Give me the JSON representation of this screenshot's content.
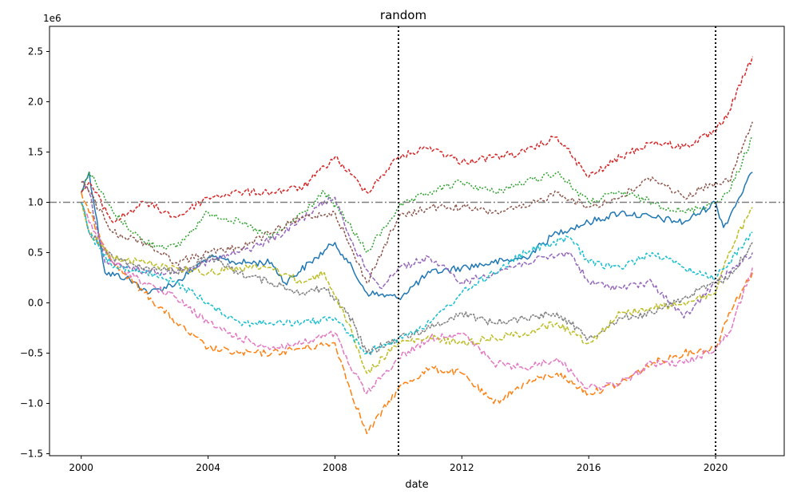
{
  "chart_data": {
    "type": "line",
    "title": "random",
    "xlabel": "date",
    "ylabel": "",
    "y_offset_label": "1e6",
    "xlim": [
      "1999-01-01",
      "2022-03-01"
    ],
    "ylim": [
      -1.52,
      2.75
    ],
    "x_ticks": [
      {
        "date": "2000-01-01",
        "label": "2000"
      },
      {
        "date": "2004-01-01",
        "label": "2004"
      },
      {
        "date": "2008-01-01",
        "label": "2008"
      },
      {
        "date": "2012-01-01",
        "label": "2012"
      },
      {
        "date": "2016-01-01",
        "label": "2016"
      },
      {
        "date": "2020-01-01",
        "label": "2020"
      }
    ],
    "y_ticks": [
      {
        "value": -1.5,
        "label": "−1.5"
      },
      {
        "value": -1.0,
        "label": "−1.0"
      },
      {
        "value": -0.5,
        "label": "−0.5"
      },
      {
        "value": 0.0,
        "label": "0.0"
      },
      {
        "value": 0.5,
        "label": "0.5"
      },
      {
        "value": 1.0,
        "label": "1.0"
      },
      {
        "value": 1.5,
        "label": "1.5"
      },
      {
        "value": 2.0,
        "label": "2.0"
      },
      {
        "value": 2.5,
        "label": "2.5"
      }
    ],
    "reference_lines": {
      "horizontal": {
        "value": 1.0,
        "color": "#7f7f7f",
        "style": "dashdot"
      },
      "vertical": [
        {
          "date": "2010-01-01",
          "color": "#000000",
          "style": "dotted"
        },
        {
          "date": "2020-01-01",
          "color": "#000000",
          "style": "dotted"
        }
      ]
    },
    "grid": false,
    "legend": "none",
    "series": [
      {
        "color": "#1f77b4",
        "dash": "solid",
        "x": [
          "2000-01-01",
          "2000-04-01",
          "2000-10-01",
          "2001-06-01",
          "2002-03-01",
          "2003-01-01",
          "2004-01-01",
          "2005-01-01",
          "2006-01-01",
          "2006-06-01",
          "2007-06-01",
          "2008-01-01",
          "2008-06-01",
          "2009-01-01",
          "2010-01-01",
          "2011-01-01",
          "2012-01-01",
          "2013-01-01",
          "2014-01-01",
          "2015-01-01",
          "2016-01-01",
          "2017-01-01",
          "2018-01-01",
          "2019-01-01",
          "2020-01-01",
          "2020-04-01",
          "2020-07-01",
          "2021-03-01"
        ],
        "y": [
          1.1,
          1.3,
          0.3,
          0.25,
          0.1,
          0.2,
          0.45,
          0.4,
          0.4,
          0.2,
          0.45,
          0.6,
          0.4,
          0.1,
          0.05,
          0.3,
          0.35,
          0.4,
          0.45,
          0.7,
          0.8,
          0.9,
          0.85,
          0.8,
          1.0,
          0.75,
          0.9,
          1.3
        ]
      },
      {
        "color": "#ff7f0e",
        "dash": "8,3",
        "x": [
          "2000-01-01",
          "2000-04-01",
          "2001-01-01",
          "2002-01-01",
          "2003-01-01",
          "2004-01-01",
          "2005-01-01",
          "2006-01-01",
          "2007-01-01",
          "2008-01-01",
          "2008-06-01",
          "2009-01-01",
          "2010-01-01",
          "2011-01-01",
          "2012-01-01",
          "2013-01-01",
          "2014-01-01",
          "2015-01-01",
          "2016-01-01",
          "2017-01-01",
          "2018-01-01",
          "2019-01-01",
          "2020-01-01",
          "2020-06-01",
          "2021-03-01"
        ],
        "y": [
          1.1,
          0.9,
          0.4,
          0.1,
          -0.2,
          -0.45,
          -0.5,
          -0.5,
          -0.45,
          -0.4,
          -0.8,
          -1.3,
          -0.85,
          -0.65,
          -0.7,
          -1.0,
          -0.8,
          -0.7,
          -0.9,
          -0.8,
          -0.6,
          -0.5,
          -0.45,
          -0.1,
          0.3
        ]
      },
      {
        "color": "#2ca02c",
        "dash": "2,2",
        "x": [
          "2000-01-01",
          "2000-04-01",
          "2001-01-01",
          "2002-01-01",
          "2003-01-01",
          "2004-01-01",
          "2005-01-01",
          "2006-01-01",
          "2007-01-01",
          "2007-09-01",
          "2008-06-01",
          "2009-01-01",
          "2010-01-01",
          "2011-01-01",
          "2012-01-01",
          "2013-01-01",
          "2014-01-01",
          "2015-01-01",
          "2016-01-01",
          "2017-01-01",
          "2018-01-01",
          "2019-01-01",
          "2020-01-01",
          "2020-06-01",
          "2021-03-01"
        ],
        "y": [
          1.1,
          1.3,
          0.9,
          0.6,
          0.55,
          0.9,
          0.8,
          0.65,
          0.9,
          1.1,
          0.8,
          0.5,
          0.95,
          1.1,
          1.2,
          1.1,
          1.2,
          1.3,
          1.0,
          1.1,
          1.0,
          0.9,
          1.0,
          1.1,
          1.65
        ]
      },
      {
        "color": "#d62728",
        "dash": "4,2",
        "x": [
          "2000-01-01",
          "2000-04-01",
          "2001-01-01",
          "2002-01-01",
          "2003-01-01",
          "2004-01-01",
          "2005-01-01",
          "2006-01-01",
          "2007-01-01",
          "2008-01-01",
          "2009-01-01",
          "2010-01-01",
          "2011-01-01",
          "2012-01-01",
          "2013-01-01",
          "2014-01-01",
          "2015-01-01",
          "2016-01-01",
          "2017-01-01",
          "2018-01-01",
          "2019-01-01",
          "2020-01-01",
          "2020-06-01",
          "2021-03-01"
        ],
        "y": [
          1.1,
          1.2,
          0.8,
          1.0,
          0.85,
          1.05,
          1.1,
          1.1,
          1.15,
          1.45,
          1.1,
          1.45,
          1.55,
          1.4,
          1.45,
          1.5,
          1.65,
          1.25,
          1.45,
          1.6,
          1.55,
          1.7,
          1.9,
          2.45
        ]
      },
      {
        "color": "#9467bd",
        "dash": "5,2",
        "x": [
          "2000-01-01",
          "2000-04-01",
          "2000-10-01",
          "2001-06-01",
          "2002-06-01",
          "2003-06-01",
          "2004-06-01",
          "2005-06-01",
          "2006-06-01",
          "2007-06-01",
          "2008-01-01",
          "2008-09-01",
          "2009-06-01",
          "2010-01-01",
          "2011-01-01",
          "2012-01-01",
          "2013-01-01",
          "2014-01-01",
          "2015-06-01",
          "2016-01-01",
          "2017-01-01",
          "2018-01-01",
          "2019-01-01",
          "2020-01-01",
          "2020-06-01",
          "2021-03-01"
        ],
        "y": [
          1.2,
          1.1,
          0.4,
          0.35,
          0.3,
          0.35,
          0.45,
          0.55,
          0.7,
          0.95,
          1.05,
          0.5,
          0.15,
          0.35,
          0.45,
          0.2,
          0.3,
          0.4,
          0.5,
          0.2,
          0.15,
          0.2,
          -0.15,
          0.2,
          0.3,
          0.5
        ]
      },
      {
        "color": "#8c564b",
        "dash": "3,2",
        "x": [
          "2000-01-01",
          "2000-04-01",
          "2001-01-01",
          "2002-01-01",
          "2003-01-01",
          "2004-01-01",
          "2005-01-01",
          "2006-01-01",
          "2007-01-01",
          "2008-01-01",
          "2008-06-01",
          "2009-01-01",
          "2010-01-01",
          "2011-01-01",
          "2012-01-01",
          "2013-01-01",
          "2014-01-01",
          "2015-01-01",
          "2016-01-01",
          "2017-01-01",
          "2018-01-01",
          "2019-01-01",
          "2020-01-01",
          "2020-06-01",
          "2021-03-01"
        ],
        "y": [
          1.2,
          1.1,
          0.7,
          0.6,
          0.4,
          0.5,
          0.55,
          0.7,
          0.85,
          0.9,
          0.6,
          0.2,
          0.85,
          0.95,
          0.95,
          0.9,
          0.95,
          1.1,
          0.95,
          1.05,
          1.25,
          1.05,
          1.2,
          1.2,
          1.8
        ]
      },
      {
        "color": "#e377c2",
        "dash": "6,2",
        "x": [
          "2000-01-01",
          "2000-04-01",
          "2001-01-01",
          "2002-01-01",
          "2003-01-01",
          "2004-01-01",
          "2005-01-01",
          "2006-01-01",
          "2007-01-01",
          "2008-01-01",
          "2008-06-01",
          "2009-01-01",
          "2010-01-01",
          "2011-01-01",
          "2012-01-01",
          "2013-01-01",
          "2014-01-01",
          "2015-01-01",
          "2016-01-01",
          "2017-01-01",
          "2018-01-01",
          "2019-01-01",
          "2020-01-01",
          "2020-06-01",
          "2021-03-01"
        ],
        "y": [
          1.0,
          0.8,
          0.4,
          0.2,
          0.05,
          -0.2,
          -0.35,
          -0.45,
          -0.4,
          -0.3,
          -0.6,
          -0.9,
          -0.55,
          -0.35,
          -0.3,
          -0.6,
          -0.65,
          -0.55,
          -0.85,
          -0.8,
          -0.6,
          -0.6,
          -0.45,
          -0.3,
          0.35
        ]
      },
      {
        "color": "#7f7f7f",
        "dash": "3,1",
        "x": [
          "2000-01-01",
          "2000-04-01",
          "2001-01-01",
          "2002-01-01",
          "2003-01-01",
          "2004-01-01",
          "2005-01-01",
          "2006-01-01",
          "2007-01-01",
          "2007-09-01",
          "2008-06-01",
          "2009-01-01",
          "2010-01-01",
          "2011-01-01",
          "2012-01-01",
          "2013-01-01",
          "2014-01-01",
          "2015-01-01",
          "2016-01-01",
          "2017-01-01",
          "2018-01-01",
          "2019-01-01",
          "2020-01-01",
          "2020-06-01",
          "2021-03-01"
        ],
        "y": [
          1.0,
          0.7,
          0.45,
          0.35,
          0.3,
          0.45,
          0.3,
          0.2,
          0.1,
          0.15,
          -0.1,
          -0.5,
          -0.35,
          -0.25,
          -0.1,
          -0.2,
          -0.15,
          -0.1,
          -0.35,
          -0.15,
          -0.1,
          0.05,
          0.2,
          0.25,
          0.6
        ]
      },
      {
        "color": "#bcbd22",
        "dash": "5,2",
        "x": [
          "2000-01-01",
          "2000-04-01",
          "2001-01-01",
          "2002-01-01",
          "2003-01-01",
          "2004-01-01",
          "2005-01-01",
          "2006-01-01",
          "2007-01-01",
          "2007-09-01",
          "2008-06-01",
          "2009-01-01",
          "2010-01-01",
          "2011-01-01",
          "2012-01-01",
          "2013-01-01",
          "2014-01-01",
          "2015-01-01",
          "2016-01-01",
          "2017-01-01",
          "2018-01-01",
          "2019-01-01",
          "2020-01-01",
          "2020-06-01",
          "2021-03-01"
        ],
        "y": [
          1.0,
          0.7,
          0.45,
          0.4,
          0.35,
          0.3,
          0.35,
          0.35,
          0.2,
          0.3,
          -0.2,
          -0.7,
          -0.4,
          -0.35,
          -0.4,
          -0.35,
          -0.3,
          -0.2,
          -0.4,
          -0.1,
          -0.05,
          0.0,
          0.1,
          0.5,
          0.95
        ]
      },
      {
        "color": "#17becf",
        "dash": "4,2",
        "x": [
          "2000-01-01",
          "2000-04-01",
          "2001-01-01",
          "2002-01-01",
          "2003-01-01",
          "2004-01-01",
          "2005-01-01",
          "2006-01-01",
          "2007-01-01",
          "2008-01-01",
          "2008-06-01",
          "2009-01-01",
          "2010-01-01",
          "2011-01-01",
          "2012-01-01",
          "2013-01-01",
          "2014-01-01",
          "2015-06-01",
          "2016-01-01",
          "2017-01-01",
          "2018-01-01",
          "2019-01-01",
          "2020-01-01",
          "2020-06-01",
          "2021-03-01"
        ],
        "y": [
          1.0,
          0.7,
          0.35,
          0.3,
          0.2,
          0.0,
          -0.2,
          -0.2,
          -0.2,
          -0.15,
          -0.3,
          -0.5,
          -0.35,
          -0.2,
          0.1,
          0.3,
          0.5,
          0.65,
          0.4,
          0.35,
          0.5,
          0.35,
          0.25,
          0.4,
          0.7
        ]
      }
    ]
  }
}
